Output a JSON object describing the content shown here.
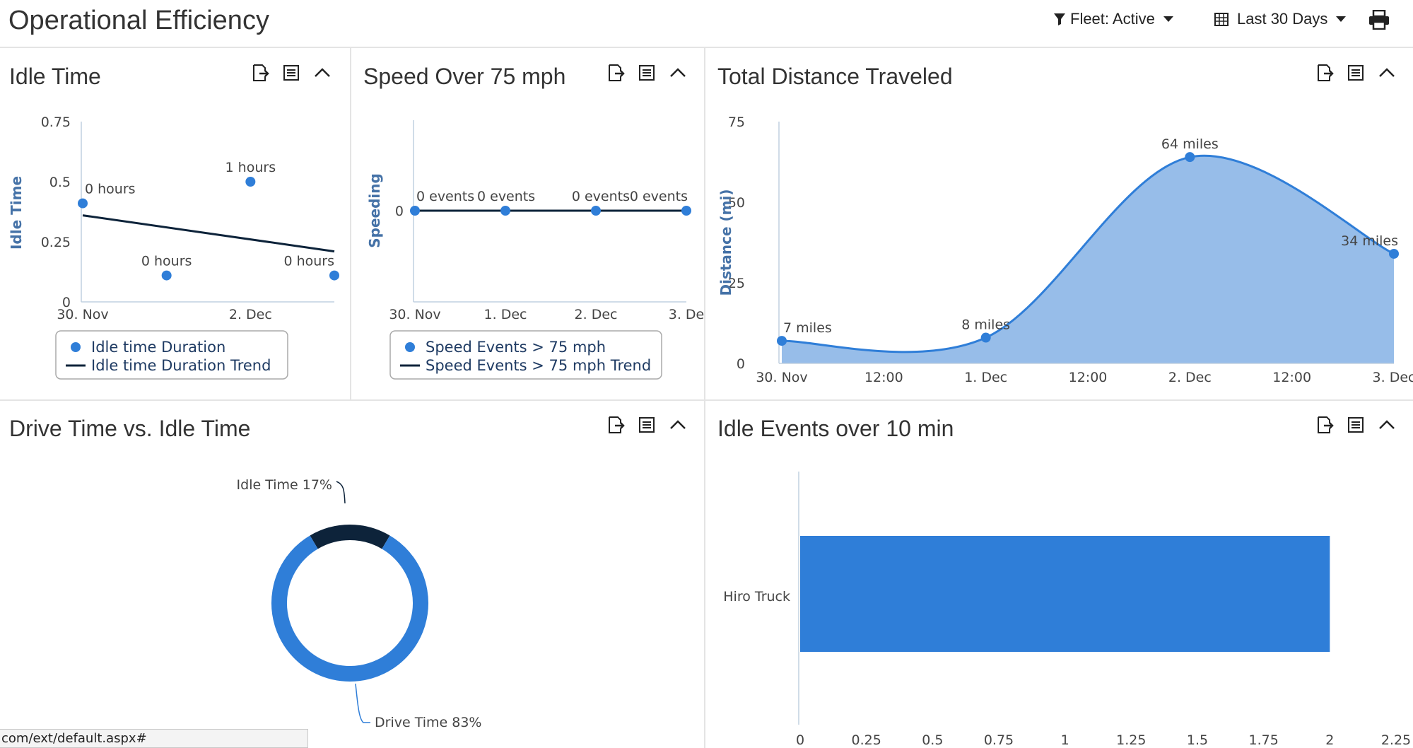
{
  "header": {
    "title": "Operational Efficiency",
    "fleet_filter": "Fleet: Active",
    "date_range": "Last 30 Days"
  },
  "status_url": "com/ext/default.aspx#",
  "colors": {
    "accent": "#2f7ed8",
    "dark": "#0d233a",
    "area_fill": "#97bde9",
    "axis_title": "#4572a7"
  },
  "icons": [
    "export-icon",
    "list-icon",
    "collapse-icon",
    "filter-icon",
    "calendar-icon",
    "print-icon"
  ],
  "panels": {
    "idle_time": {
      "title": "Idle Time"
    },
    "speed": {
      "title": "Speed Over 75 mph"
    },
    "distance": {
      "title": "Total Distance Traveled"
    },
    "drive_idle": {
      "title": "Drive Time vs. Idle Time"
    },
    "idle_events": {
      "title": "Idle Events over 10 min"
    }
  },
  "chart_data": [
    {
      "id": "idle_time",
      "type": "scatter",
      "ylabel": "Idle Time",
      "ylim": [
        0,
        0.75
      ],
      "yticks": [
        "0",
        "0.25",
        "0.5",
        "0.75"
      ],
      "xticks": [
        {
          "label": "30. Nov",
          "x": 0
        },
        {
          "label": "2. Dec",
          "x": 2
        }
      ],
      "xlim": [
        0,
        3
      ],
      "points": [
        {
          "x": 0,
          "y": 0.41,
          "label": "0 hours"
        },
        {
          "x": 1,
          "y": 0.11,
          "label": "0 hours"
        },
        {
          "x": 2,
          "y": 0.5,
          "label": "1 hours"
        },
        {
          "x": 3,
          "y": 0.11,
          "label": "0 hours"
        }
      ],
      "trend": {
        "start": 0.36,
        "end": 0.21
      },
      "legend": [
        "Idle time Duration",
        "Idle time Duration Trend"
      ]
    },
    {
      "id": "speed",
      "type": "line",
      "ylabel": "Speeding",
      "yticks": [
        "0"
      ],
      "xticks": [
        "30. Nov",
        "1. Dec",
        "2. Dec",
        "3. De"
      ],
      "points": [
        {
          "x": 0,
          "y": 0,
          "label": "0 events"
        },
        {
          "x": 1,
          "y": 0,
          "label": "0 events"
        },
        {
          "x": 2,
          "y": 0,
          "label": "0 events"
        },
        {
          "x": 3,
          "y": 0,
          "label": "0 events"
        }
      ],
      "legend": [
        "Speed Events > 75 mph",
        "Speed Events > 75 mph Trend"
      ]
    },
    {
      "id": "distance",
      "type": "area",
      "ylabel": "Distance (mi)",
      "ylim": [
        0,
        75
      ],
      "yticks": [
        "0",
        "25",
        "50",
        "75"
      ],
      "xticks": [
        "30. Nov",
        "12:00",
        "1. Dec",
        "12:00",
        "2. Dec",
        "12:00",
        "3. Dec"
      ],
      "points": [
        {
          "x": 0,
          "y": 7,
          "label": "7 miles"
        },
        {
          "x": 1,
          "y": 8,
          "label": "8 miles"
        },
        {
          "x": 2,
          "y": 64,
          "label": "64 miles"
        },
        {
          "x": 3,
          "y": 34,
          "label": "34 miles"
        }
      ]
    },
    {
      "id": "drive_idle",
      "type": "pie",
      "slices": [
        {
          "name": "Idle Time",
          "value": 17,
          "label": "Idle Time 17%",
          "color": "#0d233a"
        },
        {
          "name": "Drive Time",
          "value": 83,
          "label": "Drive Time 83%",
          "color": "#2f7ed8"
        }
      ]
    },
    {
      "id": "idle_events",
      "type": "bar",
      "orientation": "horizontal",
      "categories": [
        "Hiro Truck"
      ],
      "values": [
        2
      ],
      "xlim": [
        0,
        2.25
      ],
      "xticks": [
        "0",
        "0.25",
        "0.5",
        "0.75",
        "1",
        "1.25",
        "1.5",
        "1.75",
        "2",
        "2.25"
      ]
    }
  ]
}
